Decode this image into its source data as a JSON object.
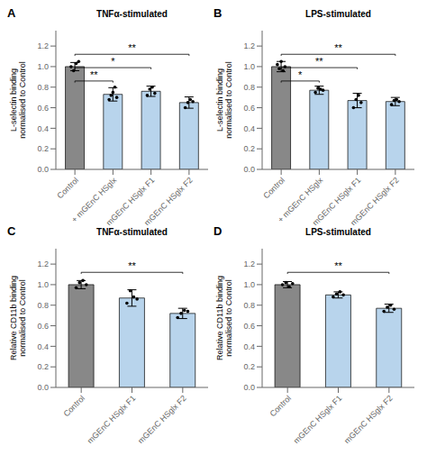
{
  "chart_data": [
    {
      "type": "bar",
      "panel_label": "A",
      "title": "TNFα-stimulated",
      "ylabel": "L-selectin binding\nnormalised to Control",
      "categories": [
        "Control",
        "+ mGEnC HSglx",
        "+ mGEnC HSglx F1",
        "+ mGEnC HSglx F2"
      ],
      "values": [
        1.0,
        0.73,
        0.76,
        0.65
      ],
      "errors": [
        0.04,
        0.065,
        0.05,
        0.055
      ],
      "points": [
        [
          1.0,
          0.96,
          1.03,
          1.05
        ],
        [
          0.68,
          0.72,
          0.75,
          0.8,
          0.7
        ],
        [
          0.72,
          0.78,
          0.8,
          0.74
        ],
        [
          0.6,
          0.65,
          0.68,
          0.66
        ]
      ],
      "colors": [
        "#888888",
        "#b8d4ec",
        "#b8d4ec",
        "#b8d4ec"
      ],
      "ylim": [
        0,
        1.35
      ],
      "yticks": [
        {
          "value": 0.0,
          "label": "0.0"
        },
        0.2,
        0.4,
        0.6,
        0.8,
        {
          "value": 1.0,
          "label": "1.0"
        },
        1.2
      ],
      "grid": false,
      "annotations": [
        {
          "from": "Control",
          "to": "+ mGEnC HSglx",
          "y": 0.86,
          "text": "**"
        },
        {
          "from": "Control",
          "to": "+ mGEnC HSglx F1",
          "y": 0.99,
          "text": "*"
        },
        {
          "from": "Control",
          "to": "+ mGEnC HSglx F2",
          "y": 1.12,
          "text": "**"
        }
      ]
    },
    {
      "type": "bar",
      "panel_label": "B",
      "title": "LPS-stimulated",
      "ylabel": "L-selectin binding\nnormalised to Control",
      "categories": [
        "Control",
        "+ mGEnC HSglx",
        "+ mGEnC HSglx F1",
        "+ mGEnC HSglx F2"
      ],
      "values": [
        1.0,
        0.77,
        0.67,
        0.66
      ],
      "errors": [
        0.05,
        0.04,
        0.07,
        0.04
      ],
      "points": [
        [
          1.02,
          0.98,
          1.05,
          0.96,
          1.0
        ],
        [
          0.75,
          0.79,
          0.78,
          0.77
        ],
        [
          0.6,
          0.68,
          0.72,
          0.65
        ],
        [
          0.63,
          0.67,
          0.68,
          0.66
        ]
      ],
      "colors": [
        "#888888",
        "#b8d4ec",
        "#b8d4ec",
        "#b8d4ec"
      ],
      "ylim": [
        0,
        1.35
      ],
      "yticks": [
        {
          "value": 0.0,
          "label": "0.0"
        },
        0.2,
        0.4,
        0.6,
        0.8,
        {
          "value": 1.0,
          "label": "1.0"
        },
        1.2
      ],
      "grid": false,
      "annotations": [
        {
          "from": "Control",
          "to": "+ mGEnC HSglx",
          "y": 0.86,
          "text": "*"
        },
        {
          "from": "Control",
          "to": "+ mGEnC HSglx F1",
          "y": 0.99,
          "text": "**"
        },
        {
          "from": "Control",
          "to": "+ mGEnC HSglx F2",
          "y": 1.12,
          "text": "**"
        }
      ]
    },
    {
      "type": "bar",
      "panel_label": "C",
      "title": "TNFα-stimulated",
      "ylabel": "Relative CD11b binding\nnormalised to Control",
      "categories": [
        "Control",
        "+ mGEnC HSglx F1",
        "+ mGEnC HSglx F2"
      ],
      "values": [
        1.0,
        0.87,
        0.72
      ],
      "errors": [
        0.04,
        0.08,
        0.05
      ],
      "points": [
        [
          0.97,
          1.02,
          1.04,
          1.0
        ],
        [
          0.82,
          0.94,
          0.88,
          0.86
        ],
        [
          0.68,
          0.72,
          0.75,
          0.74
        ]
      ],
      "colors": [
        "#888888",
        "#b8d4ec",
        "#b8d4ec"
      ],
      "ylim": [
        0,
        1.35
      ],
      "yticks": [
        {
          "value": 0.0,
          "label": "0.0"
        },
        0.2,
        0.4,
        0.6,
        0.8,
        {
          "value": 1.0,
          "label": "1.0"
        },
        1.2
      ],
      "grid": false,
      "annotations": [
        {
          "from": "Control",
          "to": "+ mGEnC HSglx F2",
          "y": 1.12,
          "text": "**"
        }
      ]
    },
    {
      "type": "bar",
      "panel_label": "D",
      "title": "LPS-stimulated",
      "ylabel": "Relative CD11b binding\nnormalised to Control",
      "categories": [
        "Control",
        "+ mGEnC HSglx F1",
        "+ mGEnC HSglx F2"
      ],
      "values": [
        1.0,
        0.9,
        0.77
      ],
      "errors": [
        0.03,
        0.03,
        0.04
      ],
      "points": [
        [
          1.0,
          1.02,
          0.98,
          1.01
        ],
        [
          0.88,
          0.91,
          0.93,
          0.9
        ],
        [
          0.74,
          0.78,
          0.8,
          0.76
        ]
      ],
      "colors": [
        "#888888",
        "#b8d4ec",
        "#b8d4ec"
      ],
      "ylim": [
        0,
        1.35
      ],
      "yticks": [
        {
          "value": 0.0,
          "label": "0.0"
        },
        0.2,
        0.4,
        0.6,
        0.8,
        {
          "value": 1.0,
          "label": "1.0"
        },
        1.2
      ],
      "grid": false,
      "annotations": [
        {
          "from": "Control",
          "to": "+ mGEnC HSglx F2",
          "y": 1.12,
          "text": "**"
        }
      ]
    }
  ]
}
